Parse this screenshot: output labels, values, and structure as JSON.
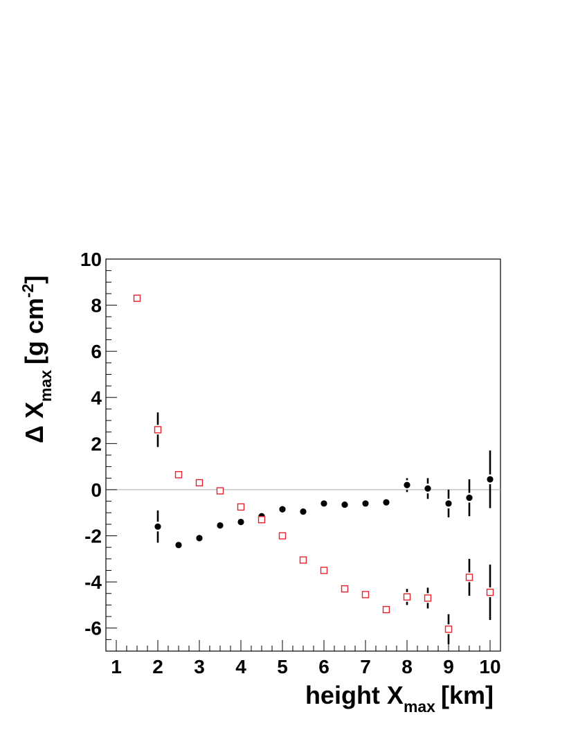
{
  "chart_data": {
    "type": "scatter",
    "xlabel": {
      "main": "height X",
      "sub": "max",
      "unit": "[km]"
    },
    "ylabel": {
      "prefix": "Δ X",
      "sub": "max",
      "unit": "[g cm",
      "sup": "-2",
      "close": "]"
    },
    "xlim": [
      0.75,
      10.25
    ],
    "ylim": [
      -7,
      10
    ],
    "x_ticks": [
      1,
      2,
      3,
      4,
      5,
      6,
      7,
      8,
      9,
      10
    ],
    "y_ticks": [
      -6,
      -4,
      -2,
      0,
      2,
      4,
      6,
      8,
      10
    ],
    "reference_line_y": 0,
    "series": [
      {
        "marker": "filled-circle",
        "color": "#000000",
        "points": [
          {
            "x": 2.0,
            "y": -1.6,
            "err": 0.7
          },
          {
            "x": 2.5,
            "y": -2.4,
            "err": 0.1
          },
          {
            "x": 3.0,
            "y": -2.1,
            "err": 0.1
          },
          {
            "x": 3.5,
            "y": -1.55,
            "err": 0.08
          },
          {
            "x": 4.0,
            "y": -1.4,
            "err": 0.08
          },
          {
            "x": 4.5,
            "y": -1.15,
            "err": 0.08
          },
          {
            "x": 5.0,
            "y": -0.85,
            "err": 0.08
          },
          {
            "x": 5.5,
            "y": -0.95,
            "err": 0.08
          },
          {
            "x": 6.0,
            "y": -0.6,
            "err": 0.08
          },
          {
            "x": 6.5,
            "y": -0.65,
            "err": 0.08
          },
          {
            "x": 7.0,
            "y": -0.6,
            "err": 0.08
          },
          {
            "x": 7.5,
            "y": -0.55,
            "err": 0.08
          },
          {
            "x": 8.0,
            "y": 0.2,
            "err": 0.3
          },
          {
            "x": 8.5,
            "y": 0.05,
            "err": 0.45
          },
          {
            "x": 9.0,
            "y": -0.6,
            "err": 0.6
          },
          {
            "x": 9.5,
            "y": -0.35,
            "err": 0.8
          },
          {
            "x": 10.0,
            "y": 0.45,
            "err": 1.25
          }
        ]
      },
      {
        "marker": "open-square",
        "color": "#e8202a",
        "points": [
          {
            "x": 1.5,
            "y": 8.3,
            "err": 0.1
          },
          {
            "x": 2.0,
            "y": 2.6,
            "err": 0.75
          },
          {
            "x": 2.5,
            "y": 0.65,
            "err": 0.1
          },
          {
            "x": 3.0,
            "y": 0.3,
            "err": 0.1
          },
          {
            "x": 3.5,
            "y": -0.05,
            "err": 0.08
          },
          {
            "x": 4.0,
            "y": -0.75,
            "err": 0.08
          },
          {
            "x": 4.5,
            "y": -1.3,
            "err": 0.08
          },
          {
            "x": 5.0,
            "y": -2.0,
            "err": 0.08
          },
          {
            "x": 5.5,
            "y": -3.05,
            "err": 0.08
          },
          {
            "x": 6.0,
            "y": -3.5,
            "err": 0.08
          },
          {
            "x": 6.5,
            "y": -4.3,
            "err": 0.08
          },
          {
            "x": 7.0,
            "y": -4.55,
            "err": 0.08
          },
          {
            "x": 7.5,
            "y": -5.2,
            "err": 0.08
          },
          {
            "x": 8.0,
            "y": -4.65,
            "err": 0.35
          },
          {
            "x": 8.5,
            "y": -4.7,
            "err": 0.45
          },
          {
            "x": 9.0,
            "y": -6.05,
            "err": 0.65
          },
          {
            "x": 9.5,
            "y": -3.8,
            "err": 0.8
          },
          {
            "x": 10.0,
            "y": -4.45,
            "err": 1.2
          }
        ]
      }
    ]
  }
}
